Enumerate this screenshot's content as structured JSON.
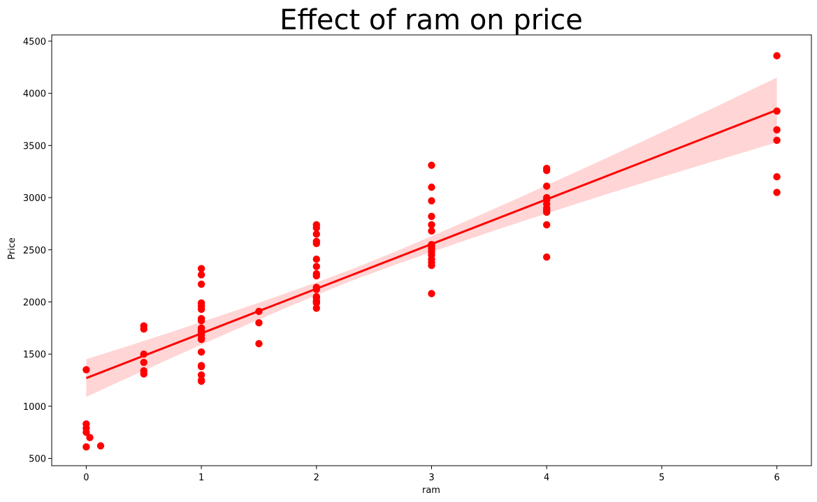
{
  "chart_data": {
    "type": "scatter",
    "title": "Effect of ram on price",
    "xlabel": "ram",
    "ylabel": "Price",
    "xlim": [
      -0.3,
      6.3
    ],
    "ylim": [
      430,
      4560
    ],
    "xticks": [
      0,
      1,
      2,
      3,
      4,
      5,
      6
    ],
    "yticks": [
      500,
      1000,
      1500,
      2000,
      2500,
      3000,
      3500,
      4000,
      4500
    ],
    "grid": false,
    "legend": "none",
    "colors": {
      "points": "#ff0000",
      "line": "#ff0000",
      "band": "#ffb3b3"
    },
    "series": [
      {
        "x": [
          0,
          0,
          0,
          0,
          0,
          0.031,
          0.125,
          0.5,
          0.5,
          0.5,
          0.5,
          0.5,
          0.5,
          1,
          1,
          1,
          1,
          1,
          1,
          1,
          1,
          1,
          1,
          1,
          1,
          1,
          1,
          1,
          1,
          1,
          1,
          1,
          1,
          1,
          1.5,
          1.5,
          1.5,
          2,
          2,
          2,
          2,
          2,
          2,
          2,
          2,
          2,
          2,
          2,
          2,
          2,
          2,
          2,
          2,
          2,
          3,
          3,
          3,
          3,
          3,
          3,
          3,
          3,
          3,
          3,
          3,
          3,
          3,
          3,
          3,
          4,
          4,
          4,
          4,
          4,
          4,
          4,
          4,
          4,
          4,
          4,
          6,
          6,
          6,
          6,
          6,
          6
        ],
        "y": [
          1350,
          830,
          790,
          750,
          610,
          700,
          620,
          1770,
          1740,
          1500,
          1420,
          1340,
          1310,
          2320,
          2260,
          2170,
          1990,
          1960,
          1930,
          1840,
          1820,
          1750,
          1720,
          1680,
          1650,
          1520,
          1390,
          1380,
          1300,
          1250,
          1240,
          1700,
          1640,
          1740,
          1910,
          1800,
          1600,
          2740,
          2710,
          2650,
          2580,
          2560,
          2410,
          2340,
          2270,
          2250,
          2140,
          2120,
          2040,
          2000,
          1990,
          1940,
          2050,
          2010,
          3310,
          3100,
          2970,
          2820,
          2740,
          2680,
          2550,
          2510,
          2480,
          2450,
          2410,
          2380,
          2350,
          2080,
          2530,
          3280,
          3260,
          3110,
          3000,
          2980,
          2940,
          2900,
          2880,
          2860,
          2740,
          2430,
          4360,
          3830,
          3650,
          3550,
          3200,
          3050
        ]
      }
    ],
    "regression": {
      "x": [
        0,
        6
      ],
      "y": [
        1270,
        3840
      ]
    }
  }
}
